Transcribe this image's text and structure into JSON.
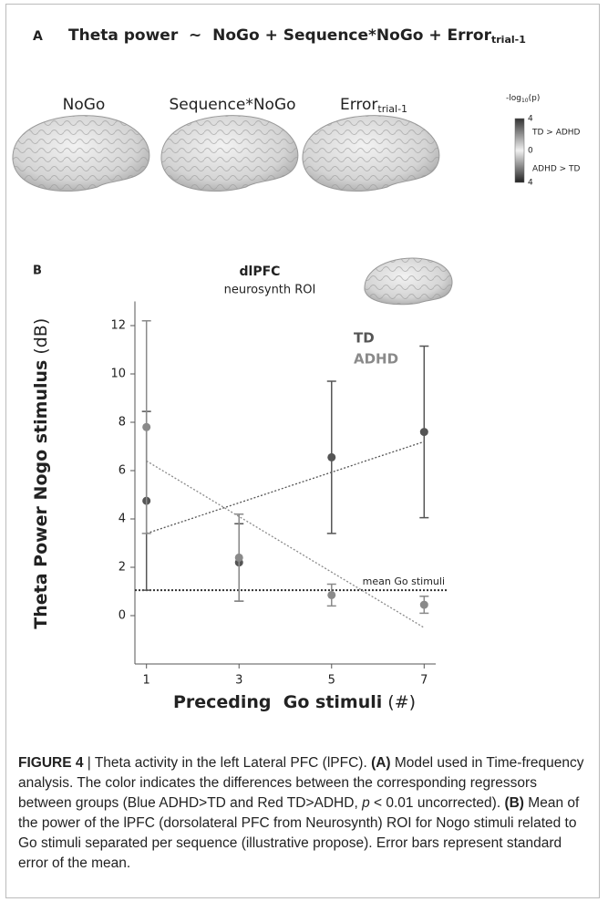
{
  "panel_a": {
    "letter": "A",
    "title": "Theta power  ~  NoGo + Sequence*NoGo + Error",
    "title_subscript": "trial-1",
    "brains": [
      {
        "label": "NoGo"
      },
      {
        "label": "Sequence*NoGo"
      },
      {
        "label": "Error",
        "subscript": "trial-1"
      }
    ],
    "colorbar": {
      "title": "-log",
      "title_subscript": "10",
      "title_suffix": "(p)",
      "labels": [
        "4",
        "TD > ADHD",
        "0",
        "ADHD > TD",
        "4"
      ]
    }
  },
  "panel_b": {
    "letter": "B",
    "roi_title": "dlPFC",
    "roi_subtitle": "neurosynth ROI"
  },
  "chart_data": {
    "type": "scatter",
    "xlabel": "Preceding  Go stimuli",
    "xlabel_unit": "(#)",
    "ylabel": "Theta Power Nogo stimulus",
    "ylabel_unit": "(dB)",
    "x": [
      1,
      3,
      5,
      7
    ],
    "xlim": [
      0.75,
      7.25
    ],
    "xticks": [
      1,
      3,
      5,
      7
    ],
    "ylim": [
      -2,
      13
    ],
    "yticks": [
      0,
      2,
      4,
      6,
      8,
      10,
      12
    ],
    "series": [
      {
        "name": "TD",
        "color": "#555555",
        "values": [
          4.75,
          2.2,
          6.55,
          7.6
        ],
        "errors": [
          3.7,
          1.6,
          3.15,
          3.55
        ],
        "trend": [
          3.4,
          7.2
        ]
      },
      {
        "name": "ADHD",
        "color": "#8a8a8a",
        "values": [
          7.8,
          2.4,
          0.85,
          0.45
        ],
        "errors": [
          4.4,
          1.8,
          0.45,
          0.35
        ],
        "trend": [
          6.4,
          -0.5
        ]
      }
    ],
    "reference_line": {
      "value": 1.05,
      "label": "mean Go stimuli"
    }
  },
  "caption": [
    {
      "text": "FIGURE 4",
      "bold": true
    },
    {
      "text": " | Theta activity in the left Lateral PFC (lPFC). "
    },
    {
      "text": "(A)",
      "bold": true
    },
    {
      "text": " Model used in Time-frequency analysis. The color indicates the differences between the corresponding regressors between groups (Blue ADHD>TD and Red TD>ADHD, "
    },
    {
      "text": "p",
      "italic": true
    },
    {
      "text": " < 0.01 uncorrected). "
    },
    {
      "text": "(B)",
      "bold": true
    },
    {
      "text": " Mean of the power of the lPFC (dorsolateral PFC from Neurosynth) ROI for Nogo stimuli related to Go stimuli separated per sequence (illustrative propose). Error bars represent standard error of the mean."
    }
  ]
}
